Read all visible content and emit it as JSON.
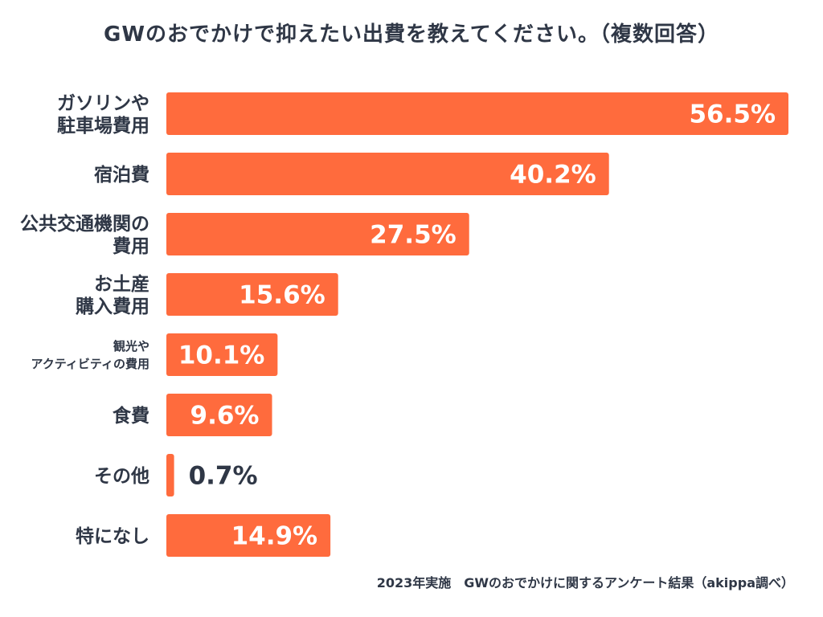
{
  "chart_data": {
    "type": "bar",
    "orientation": "horizontal",
    "title": "GWのおでかけで抑えたい出費を教えてください。（複数回答）",
    "categories": [
      [
        "ガソリンや",
        "駐車場費用"
      ],
      [
        "宿泊費"
      ],
      [
        "公共交通機関の",
        "費用"
      ],
      [
        "お土産",
        "購入費用"
      ],
      [
        "観光や",
        "アクティビティの費用"
      ],
      [
        "食費"
      ],
      [
        "その他"
      ],
      [
        "特になし"
      ]
    ],
    "values": [
      56.5,
      40.2,
      27.5,
      15.6,
      10.1,
      9.6,
      0.7,
      14.9
    ],
    "value_labels": [
      "56.5%",
      "40.2%",
      "27.5%",
      "15.6%",
      "10.1%",
      "9.6%",
      "0.7%",
      "14.9%"
    ],
    "xlim": [
      0,
      56.5
    ],
    "unit": "%",
    "bar_color": "#ff6b3d",
    "label_color": "#2f3746",
    "value_label_color_inside": "#ffffff",
    "value_label_color_outside": "#2f3746",
    "footer": "2023年実施　GWのおでかけに関するアンケート結果（akippa調べ）"
  }
}
